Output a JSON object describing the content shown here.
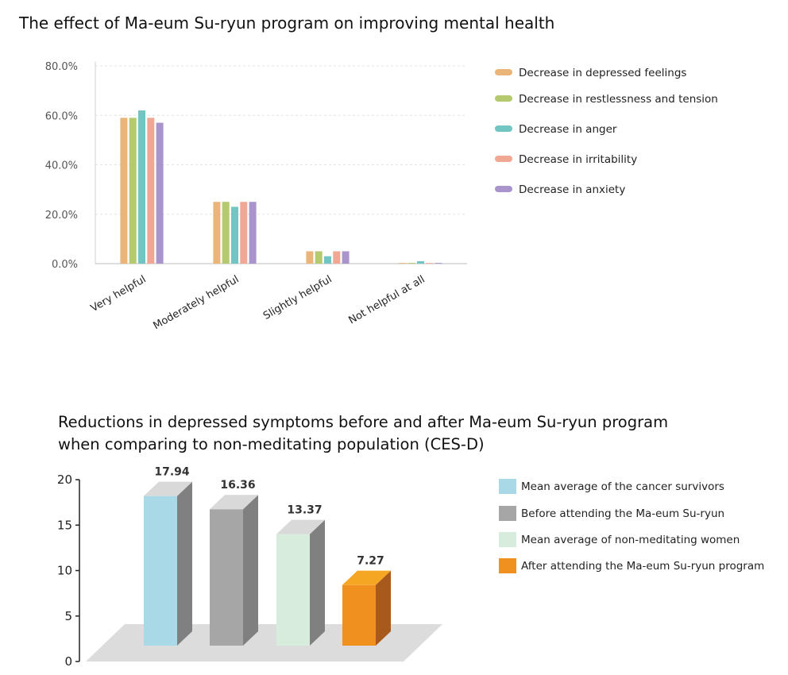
{
  "chart_data": [
    {
      "type": "bar",
      "title": "The effect of Ma-eum Su-ryun program on improving mental health",
      "categories": [
        "Very helpful",
        "Moderately helpful",
        "Slightly helpful",
        "Not helpful at all"
      ],
      "series": [
        {
          "name": "Decrease in depressed feelings",
          "color": "#EBB57A",
          "values": [
            59,
            25,
            5,
            0.3
          ]
        },
        {
          "name": "Decrease in restlessness and tension",
          "color": "#B5C96E",
          "values": [
            59,
            25,
            5,
            0.3
          ]
        },
        {
          "name": "Decrease in anger",
          "color": "#73C5C3",
          "values": [
            62,
            23,
            3,
            1
          ]
        },
        {
          "name": "Decrease in irritability",
          "color": "#F0A895",
          "values": [
            59,
            25,
            5,
            0.3
          ]
        },
        {
          "name": "Decrease in anxiety",
          "color": "#A994CC",
          "values": [
            57,
            25,
            5,
            0.3
          ]
        }
      ],
      "yticks": [
        "0.0%",
        "20.0%",
        "40.0%",
        "60.0%",
        "80.0%"
      ],
      "ylim": [
        0,
        80
      ],
      "grid": true,
      "legend": "right"
    },
    {
      "type": "bar",
      "title_lines": [
        "Reductions in depressed symptoms before and after Ma-eum Su-ryun program",
        "when comparing to non-meditating population (CES-D)"
      ],
      "categories": [
        "Mean average of the cancer survivors",
        "Before attending the Ma-eum Su-ryun",
        "Mean average of non-meditating women",
        "After attending the Ma-eum Su-ryun program"
      ],
      "values": [
        17.94,
        16.36,
        13.37,
        7.27
      ],
      "value_labels": [
        "17.94",
        "16.36",
        "13.37",
        "7.27"
      ],
      "colors": [
        "#A9D8E7",
        "#A6A6A6",
        "#D7ECDC",
        "#F0901E"
      ],
      "yticks": [
        "0",
        "5",
        "10",
        "15",
        "20"
      ],
      "ylim": [
        0,
        20
      ],
      "legend": "right"
    }
  ]
}
